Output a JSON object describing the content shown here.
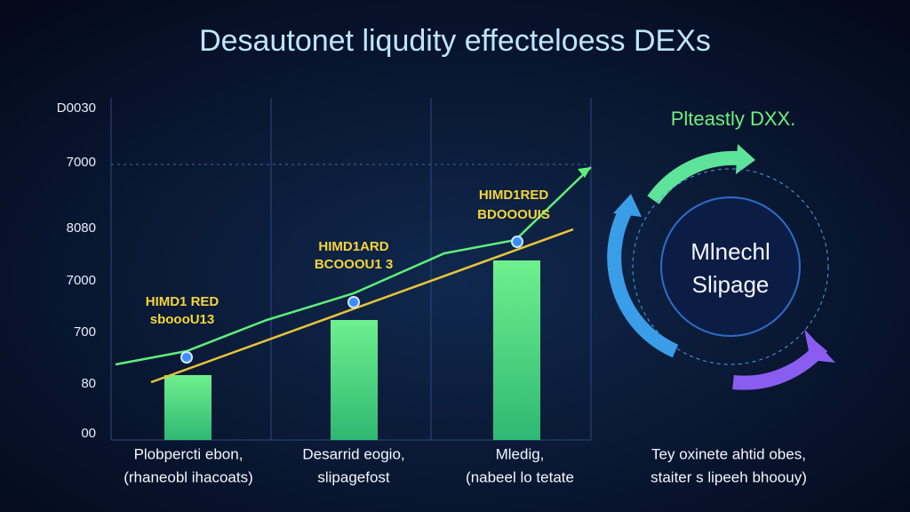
{
  "header": {
    "title": "Desautonet liqudity effecteloess DEXs"
  },
  "axis_labels": [
    "D0030",
    "7000",
    "8080",
    "7000",
    "700",
    "80",
    "00"
  ],
  "annotations": [
    {
      "line1": "HIMD1 RED",
      "line2": "sboooU13"
    },
    {
      "line1": "HIMD1ARD",
      "line2": "BCOOOU1 3"
    },
    {
      "line1": "HIMD1RED",
      "line2": "BDOOOUIS"
    }
  ],
  "categories": [
    {
      "line1": "Plobpercti ebon,",
      "line2": "(rhaneobl ihacoats)"
    },
    {
      "line1": "Desarrid eogio,",
      "line2": "slipagefost"
    },
    {
      "line1": "Mledig,",
      "line2": "(nabeel lo tetate"
    },
    {
      "line1": "Tey oxinete ahtid obes,",
      "line2": "staiter s lipeeh bhoouy)"
    }
  ],
  "cycle": {
    "heading": "Plteastly DXX.",
    "line1": "Mlnechl",
    "line2": "Slipage"
  }
}
